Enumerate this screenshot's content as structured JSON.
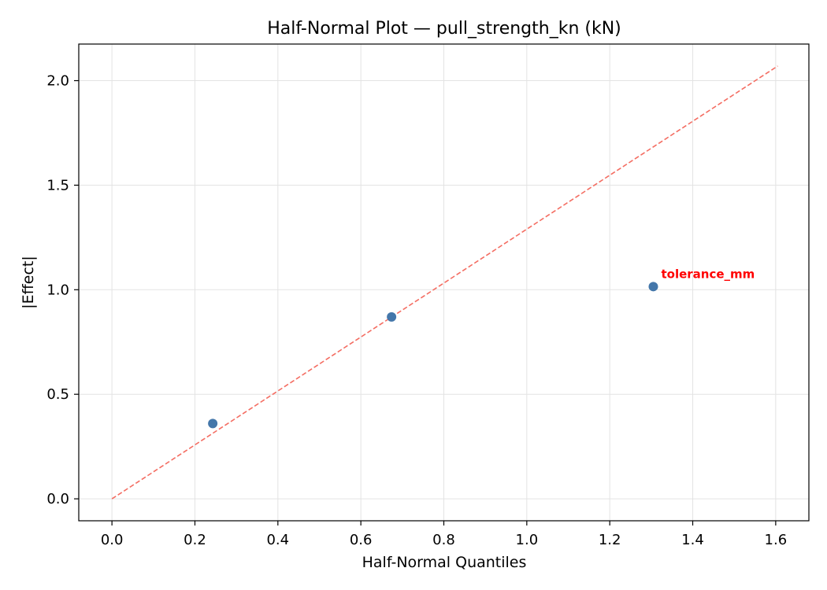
{
  "chart_data": {
    "type": "scatter",
    "title": "Half-Normal Plot — pull_strength_kn (kN)",
    "xlabel": "Half-Normal Quantiles",
    "ylabel": "|Effect|",
    "xlim": [
      -0.08,
      1.68
    ],
    "ylim": [
      -0.105,
      2.175
    ],
    "x_ticks": [
      0.0,
      0.2,
      0.4,
      0.6,
      0.8,
      1.0,
      1.2,
      1.4,
      1.6
    ],
    "x_tick_labels": [
      "0.0",
      "0.2",
      "0.4",
      "0.6",
      "0.8",
      "1.0",
      "1.2",
      "1.4",
      "1.6"
    ],
    "y_ticks": [
      0.0,
      0.5,
      1.0,
      1.5,
      2.0
    ],
    "y_tick_labels": [
      "0.0",
      "0.5",
      "1.0",
      "1.5",
      "2.0"
    ],
    "grid": true,
    "points": [
      {
        "x": 0.243,
        "y": 0.36
      },
      {
        "x": 0.674,
        "y": 0.87
      },
      {
        "x": 1.305,
        "y": 1.015,
        "label": "tolerance_mm"
      }
    ],
    "reference_line": {
      "x": [
        0.0,
        1.605
      ],
      "y": [
        0.0,
        2.07
      ],
      "style": "dashed"
    },
    "colors": {
      "points": "#4477aa",
      "reference_line": "#f46d62",
      "annotation": "#ff0000",
      "grid": "#e3e3e3",
      "axes": "#000000"
    }
  }
}
